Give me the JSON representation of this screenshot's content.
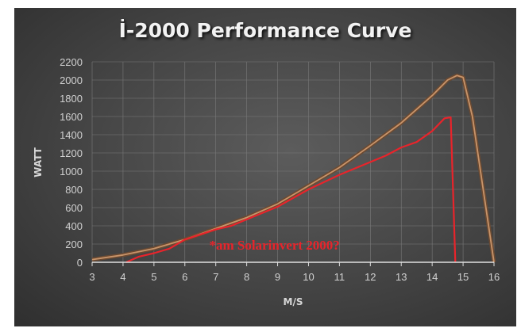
{
  "chart_data": {
    "type": "line",
    "title": "İ-2000 Performance Curve",
    "xlabel": "M/S",
    "ylabel": "WATT",
    "xlim": [
      3,
      16
    ],
    "ylim": [
      0,
      2200
    ],
    "xticks": [
      3,
      4,
      5,
      6,
      7,
      8,
      9,
      10,
      11,
      12,
      13,
      14,
      15,
      16
    ],
    "yticks": [
      0,
      200,
      400,
      600,
      800,
      1000,
      1200,
      1400,
      1600,
      1800,
      2000,
      2200
    ],
    "grid": true,
    "series": [
      {
        "name": "i-2000",
        "color": "#c8946a",
        "x": [
          3,
          4,
          5,
          6,
          7,
          8,
          9,
          10,
          11,
          12,
          13,
          14,
          14.5,
          14.8,
          15,
          15.3,
          16
        ],
        "y": [
          30,
          80,
          150,
          250,
          370,
          490,
          640,
          840,
          1040,
          1280,
          1530,
          1830,
          2000,
          2050,
          2030,
          1600,
          0
        ]
      },
      {
        "name": "Solarinvert 2000",
        "color": "#e8242b",
        "x": [
          4.1,
          4.5,
          5,
          5.5,
          6,
          7,
          7.5,
          8,
          9,
          10,
          11,
          12,
          12.5,
          13,
          13.5,
          14,
          14.4,
          14.6,
          14.75
        ],
        "y": [
          0,
          60,
          100,
          150,
          250,
          360,
          400,
          470,
          610,
          800,
          960,
          1100,
          1170,
          1260,
          1320,
          1440,
          1580,
          1590,
          0
        ]
      }
    ],
    "annotations": [
      {
        "text": "*am Solarinvert 2000?",
        "x": 8.9,
        "y": 330
      }
    ]
  }
}
